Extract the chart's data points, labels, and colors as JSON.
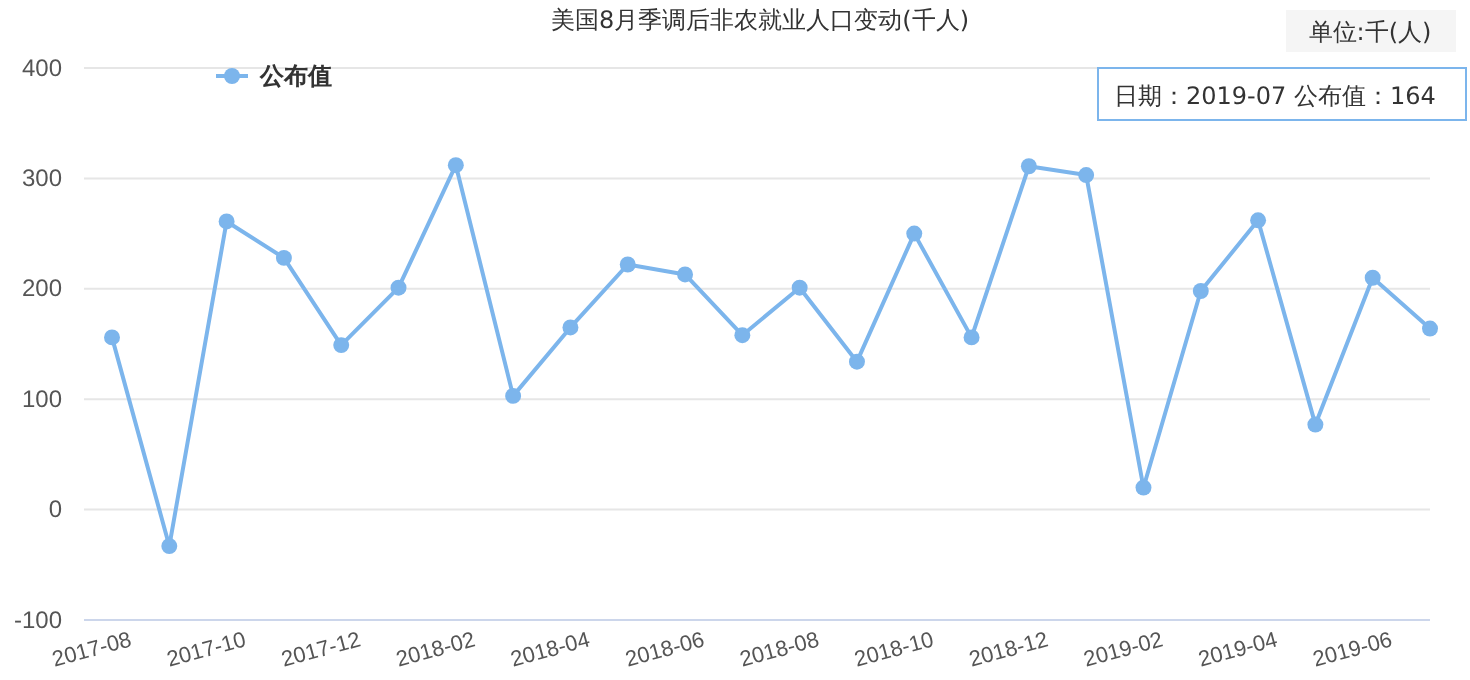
{
  "chart_data": {
    "type": "line",
    "title": "美国8月季调后非农就业人口变动(千人)",
    "categories": [
      "2017-08",
      null,
      "2017-10",
      null,
      "2017-12",
      null,
      "2018-02",
      null,
      "2018-04",
      null,
      "2018-06",
      null,
      "2018-08",
      null,
      "2018-10",
      null,
      "2018-12",
      null,
      "2019-02",
      null,
      "2019-04",
      null,
      "2019-06",
      null
    ],
    "series": [
      {
        "name": "公布值",
        "color": "#7cb5ec",
        "values": [
          156,
          -33,
          261,
          228,
          149,
          201,
          312,
          103,
          165,
          222,
          213,
          158,
          201,
          134,
          250,
          156,
          311,
          303,
          20,
          198,
          262,
          77,
          210,
          164
        ]
      }
    ],
    "ylim": [
      -100,
      400
    ],
    "yticks": [
      -100,
      0,
      100,
      200,
      300,
      400
    ],
    "grid": "y",
    "legend": "top left",
    "marker": "circle",
    "line_style": "solid",
    "annotations": [
      "单位:千(人)",
      "日期：2019-07 公布值：164"
    ]
  }
}
